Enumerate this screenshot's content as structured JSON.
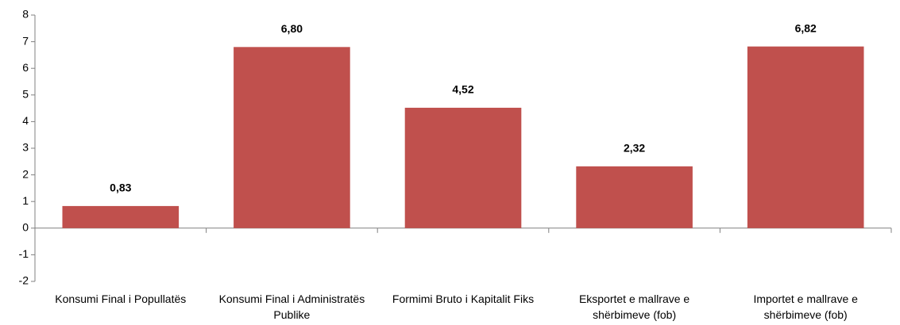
{
  "chart_data": {
    "type": "bar",
    "categories": [
      "Konsumi Final i Popullatës",
      "Konsumi Final i Administratës Publike",
      "Formimi Bruto i Kapitalit Fiks",
      "Eksportet e mallrave e shërbimeve (fob)",
      "Importet e mallrave e shërbimeve (fob)"
    ],
    "values": [
      0.83,
      6.8,
      4.52,
      2.32,
      6.82
    ],
    "value_labels": [
      "0,83",
      "6,80",
      "4,52",
      "2,32",
      "6,82"
    ],
    "color": "#c0504d",
    "ylim": [
      -2,
      8
    ],
    "yticks": [
      -2,
      -1,
      0,
      1,
      2,
      3,
      4,
      5,
      6,
      7,
      8
    ],
    "grid": false
  }
}
